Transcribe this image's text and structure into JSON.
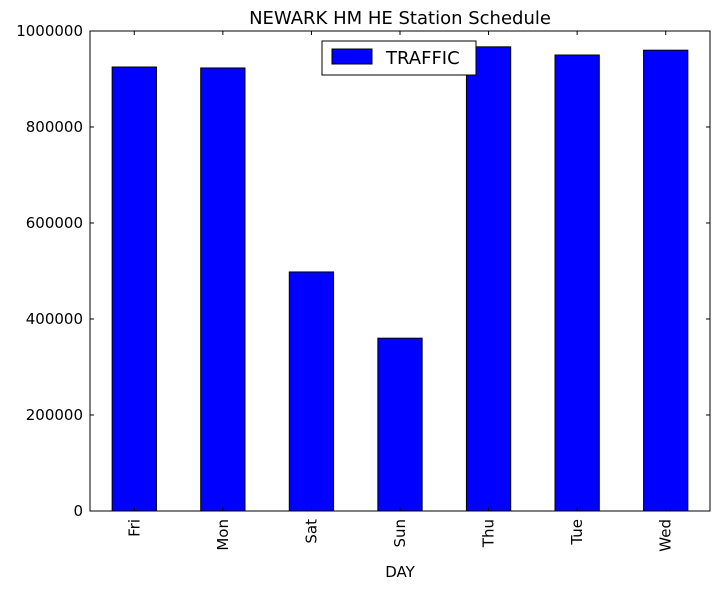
{
  "chart_data": {
    "type": "bar",
    "title": "NEWARK HM HE Station Schedule",
    "xlabel": "DAY",
    "ylabel": "",
    "categories": [
      "Fri",
      "Mon",
      "Sat",
      "Sun",
      "Thu",
      "Tue",
      "Wed"
    ],
    "series": [
      {
        "name": "TRAFFIC",
        "values": [
          925000,
          923000,
          498000,
          360000,
          967000,
          950000,
          960000
        ],
        "color": "#0000ff"
      }
    ],
    "ylim": [
      0,
      1000000
    ],
    "yticks": [
      0,
      200000,
      400000,
      600000,
      800000,
      1000000
    ],
    "ytick_labels": [
      "0",
      "200000",
      "400000",
      "600000",
      "800000",
      "1000000"
    ],
    "grid": false,
    "legend": "top-center"
  }
}
